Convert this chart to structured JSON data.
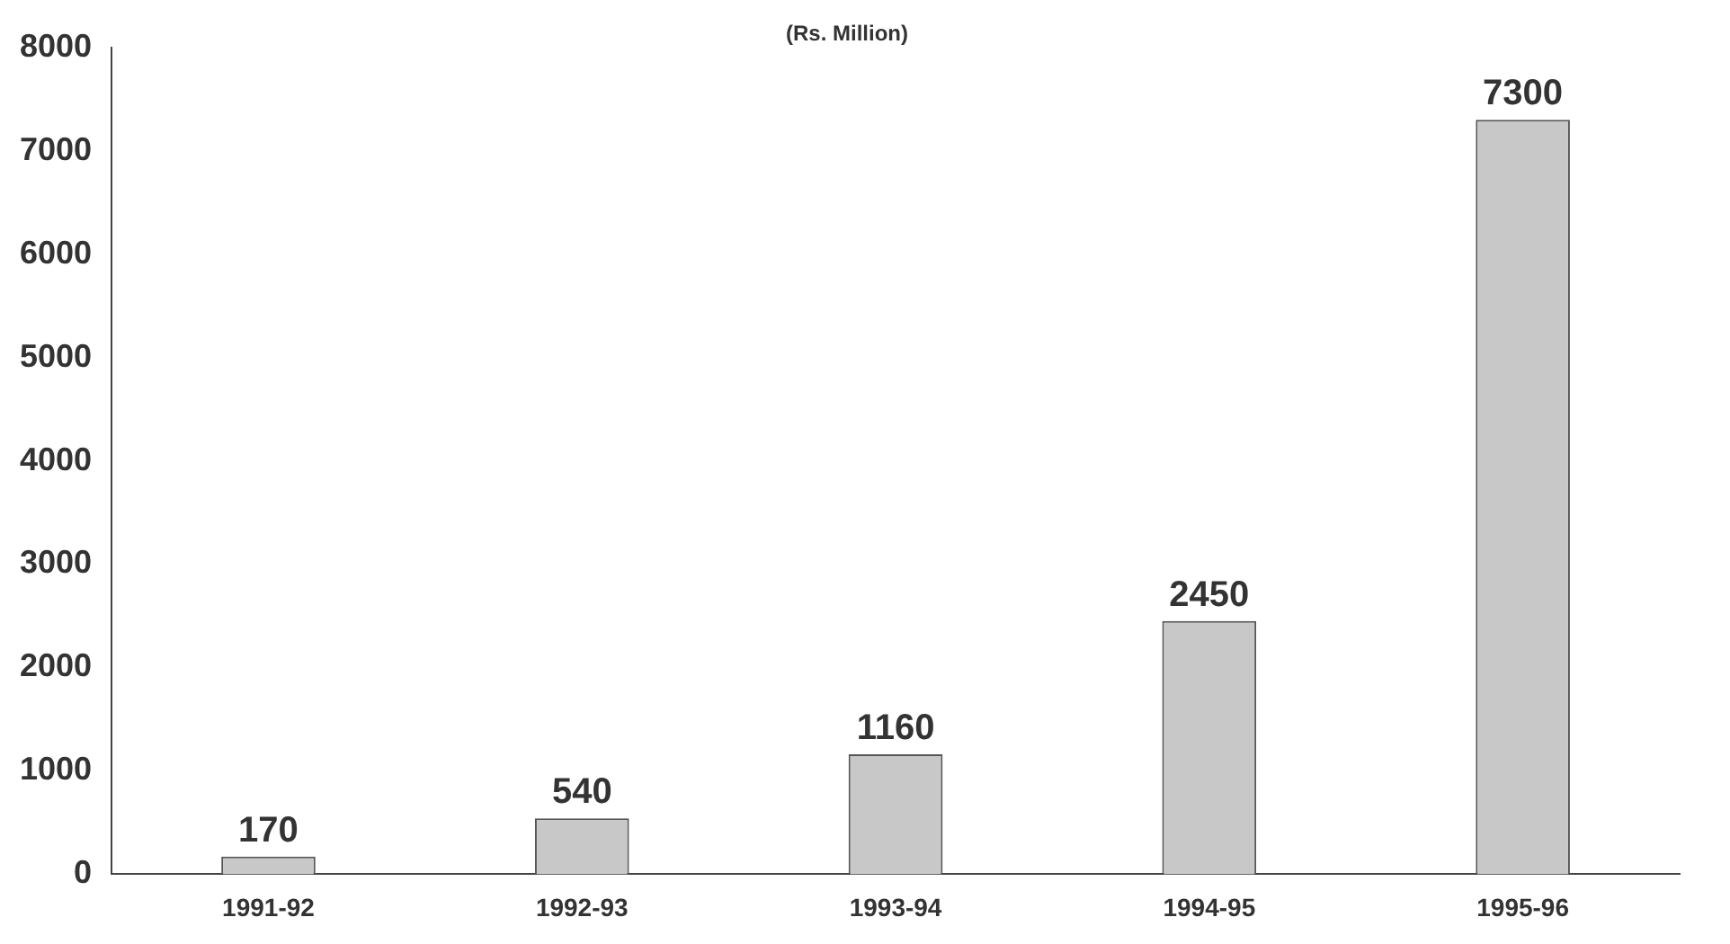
{
  "chart_data": {
    "type": "bar",
    "subtitle": "(Rs. Million)",
    "categories": [
      "1991-92",
      "1992-93",
      "1993-94",
      "1994-95",
      "1995-96"
    ],
    "values": [
      170,
      540,
      1160,
      2450,
      7300
    ],
    "color": "#c8c8c8",
    "ylim": [
      0,
      8000
    ],
    "yticks": [
      0,
      1000,
      2000,
      3000,
      4000,
      5000,
      6000,
      7000,
      8000
    ],
    "data_labels": true,
    "grid": false,
    "legend": false
  }
}
